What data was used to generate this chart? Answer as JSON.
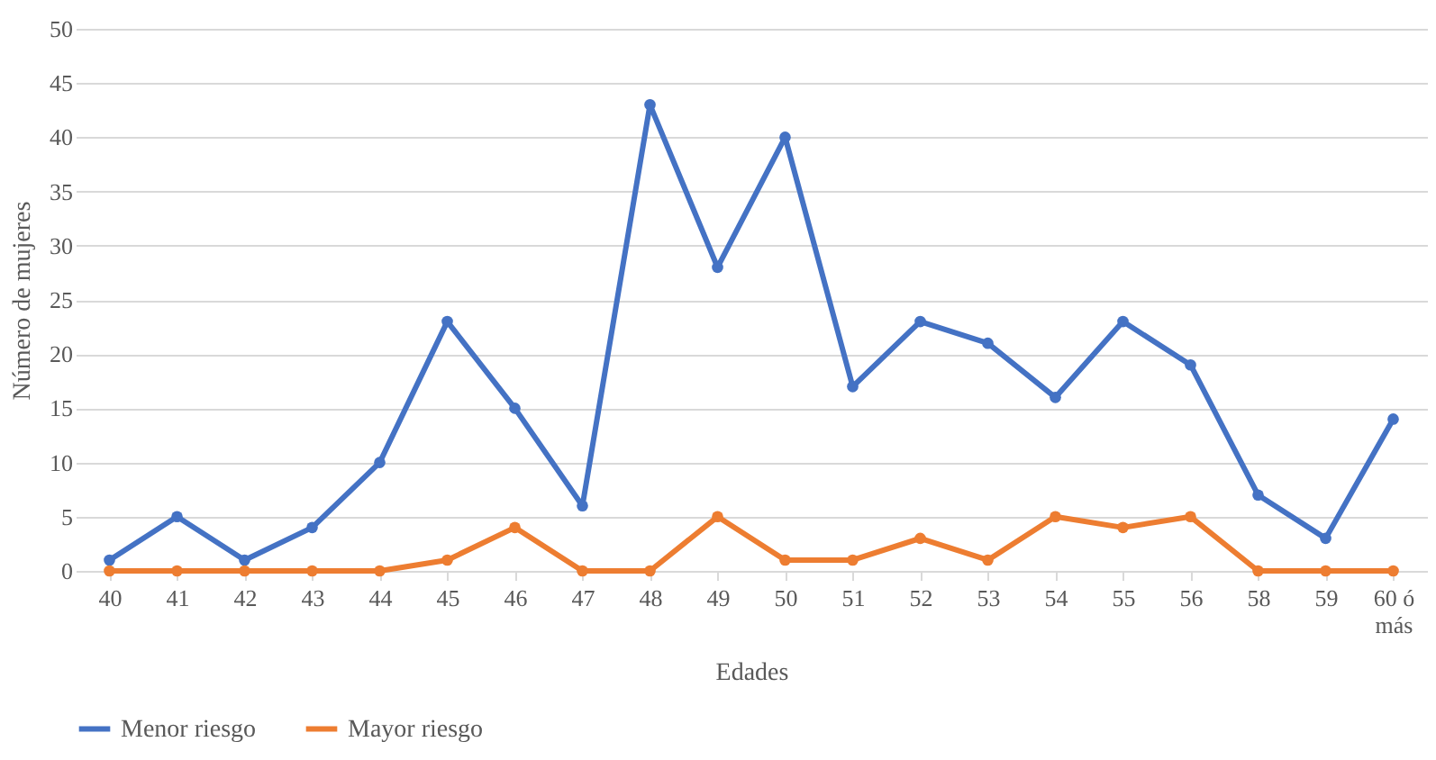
{
  "chart_data": {
    "type": "line",
    "xlabel": "Edades",
    "ylabel": "Número de mujeres",
    "categories": [
      "40",
      "41",
      "42",
      "43",
      "44",
      "45",
      "46",
      "47",
      "48",
      "49",
      "50",
      "51",
      "52",
      "53",
      "54",
      "55",
      "56",
      "58",
      "59",
      "60 ó más"
    ],
    "series": [
      {
        "name": "Menor riesgo",
        "color": "#4472c4",
        "values": [
          1,
          5,
          1,
          4,
          10,
          23,
          15,
          6,
          43,
          28,
          40,
          17,
          23,
          21,
          16,
          23,
          19,
          7,
          3,
          14
        ]
      },
      {
        "name": "Mayor riesgo",
        "color": "#ed7d31",
        "values": [
          0,
          0,
          0,
          0,
          0,
          1,
          4,
          0,
          0,
          5,
          1,
          1,
          3,
          1,
          5,
          4,
          5,
          0,
          0,
          0
        ]
      }
    ],
    "ylim": [
      0,
      50
    ],
    "yticks": [
      0,
      5,
      10,
      15,
      20,
      25,
      30,
      35,
      40,
      45,
      50
    ],
    "grid": "y",
    "legend": "bottom",
    "marker": "circle",
    "line_style": "solid"
  }
}
